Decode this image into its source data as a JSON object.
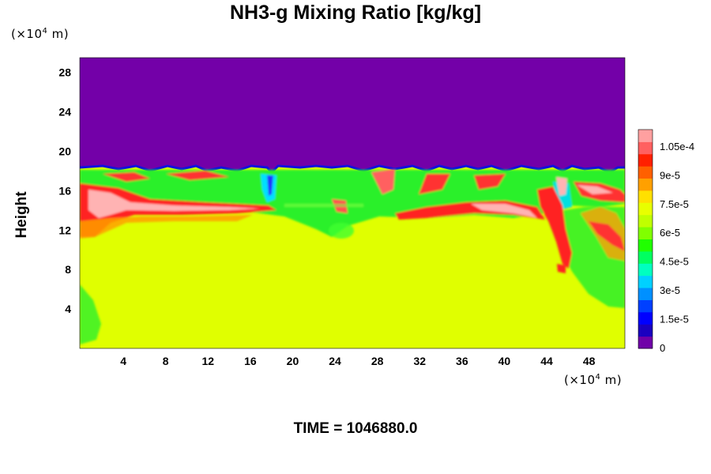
{
  "title": "NH3-g Mixing Ratio [kg/kg]",
  "y_unit": {
    "prefix": "(×10",
    "exp": "4",
    "suffix": " m)"
  },
  "x_unit": {
    "prefix": "(×10",
    "exp": "4",
    "suffix": " m)"
  },
  "time_label": "TIME = 1046880.0",
  "colors": {
    "upper_background": "#7300a8",
    "bulk_background": "#e0ff00",
    "band_green": "#2cf02c",
    "band_red": "#ff2020",
    "band_pink": "#ffb3b3",
    "band_blue": "#1010e0"
  },
  "chart_data": {
    "type": "heatmap",
    "title": "NH3-g Mixing Ratio [kg/kg]",
    "xlabel": "",
    "ylabel": "Height",
    "x_ticks": [
      "4",
      "8",
      "12",
      "16",
      "20",
      "24",
      "28",
      "32",
      "36",
      "40",
      "44",
      "48"
    ],
    "y_ticks": [
      "4",
      "8",
      "12",
      "16",
      "20",
      "24",
      "28"
    ],
    "xlim": [
      0,
      51.5
    ],
    "ylim": [
      0,
      29.5
    ],
    "colorbar": {
      "ticks": [
        "0",
        "1.5e-5",
        "3e-5",
        "4.5e-5",
        "6e-5",
        "7.5e-5",
        "9e-5",
        "1.05e-4"
      ],
      "range": [
        0,
        0.000114
      ],
      "colors": [
        "#7000a8",
        "#1a00c0",
        "#0000ff",
        "#0040ff",
        "#0090ff",
        "#00d0ff",
        "#00ffc0",
        "#00ff60",
        "#20ff00",
        "#80ff00",
        "#c0ff00",
        "#e8ff00",
        "#ffe000",
        "#ffa000",
        "#ff6000",
        "#ff2000",
        "#ff6060",
        "#ffa0a0"
      ]
    },
    "field_description_zones": [
      {
        "name": "upper",
        "y_range": [
          18.7,
          29.5
        ],
        "value": 0
      },
      {
        "name": "bulk",
        "y_range": [
          0,
          13.2
        ],
        "value": 7.5e-05
      }
    ]
  }
}
